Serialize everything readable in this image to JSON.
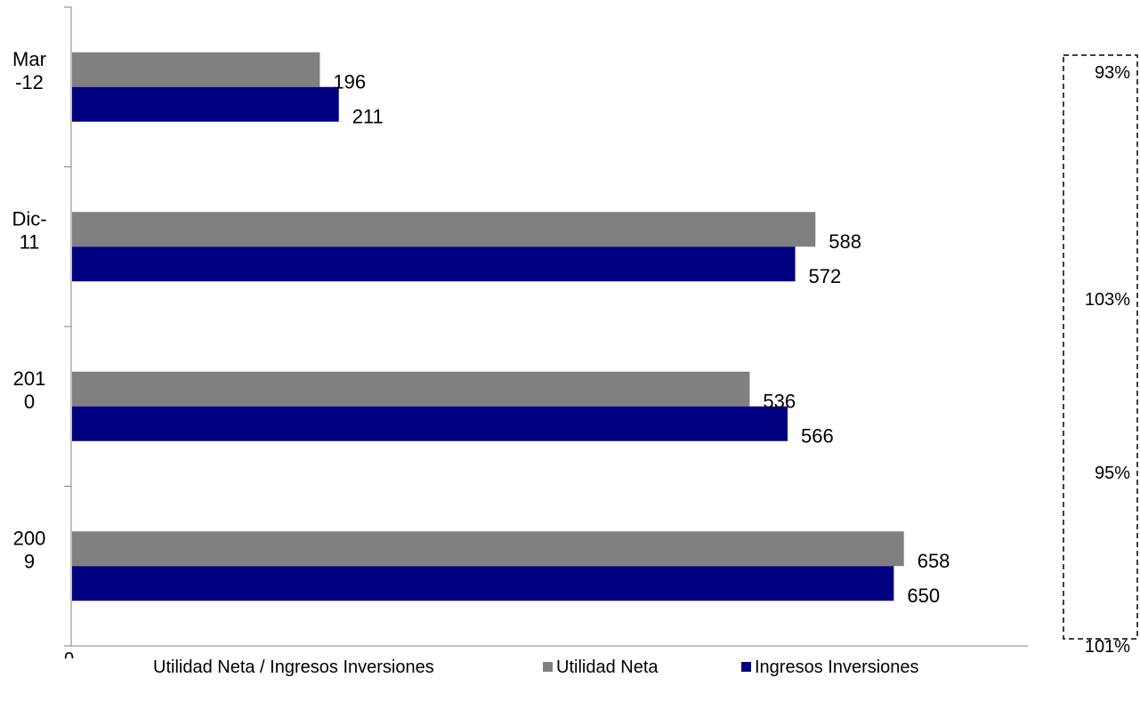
{
  "chart_data": {
    "type": "bar",
    "orientation": "horizontal",
    "categories": [
      "Mar\n-12",
      "Dic-\n11",
      "201\n0",
      "200\n9"
    ],
    "series": [
      {
        "name": "Utilidad Neta",
        "color": "#808080",
        "values": [
          196,
          588,
          536,
          658
        ]
      },
      {
        "name": "Ingresos Inversiones",
        "color": "#000080",
        "values": [
          211,
          572,
          566,
          650
        ]
      }
    ],
    "ratio_series": {
      "name": "Utilidad Neta / Ingresos Inversiones",
      "values": [
        "93%",
        "103%",
        "95%",
        "101%"
      ]
    },
    "xlim": [
      0,
      700
    ],
    "axis_origin_label": "0",
    "grid": false,
    "legend_position": "bottom"
  }
}
